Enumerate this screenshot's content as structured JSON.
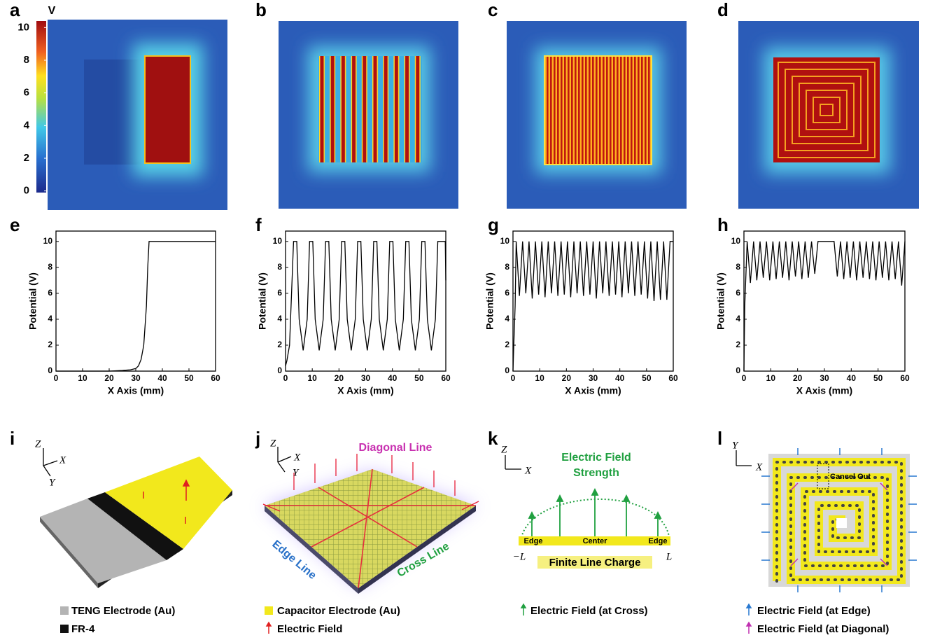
{
  "panel_labels": [
    "a",
    "b",
    "c",
    "d",
    "e",
    "f",
    "g",
    "h",
    "i",
    "j",
    "k",
    "l"
  ],
  "colorbar": {
    "unit": "V",
    "ticks": [
      0,
      2,
      4,
      6,
      8,
      10
    ],
    "lim": [
      -0.1,
      10.4
    ]
  },
  "chart_data": [
    {
      "type": "line",
      "xlabel": "X Axis (mm)",
      "ylabel": "Potential (V)",
      "color": "#000000",
      "xlim": [
        0,
        60
      ],
      "xticks": [
        0,
        10,
        20,
        30,
        40,
        50,
        60
      ],
      "ylim": [
        0,
        10.8
      ],
      "yticks": [
        0,
        2,
        4,
        6,
        8,
        10
      ],
      "x": [
        0,
        10,
        20,
        25,
        28,
        30,
        31,
        32,
        33,
        34,
        34.5,
        35,
        40,
        50,
        60
      ],
      "values": [
        0,
        0,
        0,
        0.05,
        0.1,
        0.2,
        0.4,
        0.9,
        2,
        5,
        8,
        10,
        10,
        10,
        10
      ]
    },
    {
      "type": "line",
      "xlabel": "X Axis (mm)",
      "ylabel": "Potential (V)",
      "color": "#000000",
      "xlim": [
        0,
        60
      ],
      "xticks": [
        0,
        10,
        20,
        30,
        40,
        50,
        60
      ],
      "ylim": [
        0,
        10.8
      ],
      "yticks": [
        0,
        2,
        4,
        6,
        8,
        10
      ],
      "x": [
        0,
        0.5,
        1.5,
        3.0,
        4.2,
        5.1,
        6.6,
        8.1,
        9.0,
        10.2,
        11.1,
        12.6,
        14.1,
        15.0,
        16.2,
        17.1,
        18.6,
        20.1,
        21.0,
        22.2,
        23.1,
        24.6,
        26.1,
        27.0,
        28.2,
        29.1,
        30.6,
        32.1,
        33.0,
        34.2,
        35.1,
        36.6,
        38.1,
        39.0,
        40.2,
        41.1,
        42.6,
        44.1,
        45.0,
        46.2,
        47.1,
        48.6,
        50.1,
        51.0,
        52.2,
        53.1,
        54.6,
        56.1,
        57.0,
        59.8,
        60
      ],
      "values": [
        0.4,
        0.8,
        2,
        10,
        10,
        4,
        1.6,
        4,
        10,
        10,
        4,
        1.6,
        4,
        10,
        10,
        4,
        1.6,
        4,
        10,
        10,
        4,
        1.6,
        4,
        10,
        10,
        4,
        1.6,
        4,
        10,
        10,
        4,
        1.6,
        4,
        10,
        10,
        4,
        1.6,
        4,
        10,
        10,
        4,
        1.6,
        4,
        10,
        10,
        4,
        1.6,
        4,
        10,
        10,
        7
      ]
    },
    {
      "type": "line",
      "xlabel": "X Axis (mm)",
      "ylabel": "Potential (V)",
      "color": "#000000",
      "xlim": [
        0,
        60
      ],
      "xticks": [
        0,
        10,
        20,
        30,
        40,
        50,
        60
      ],
      "ylim": [
        0,
        10.8
      ],
      "yticks": [
        0,
        2,
        4,
        6,
        8,
        10
      ],
      "x": [
        0,
        0.3,
        0.8,
        1.2,
        2.4,
        3.6,
        4.8,
        6.0,
        7.2,
        8.4,
        9.6,
        10.8,
        12.0,
        13.2,
        14.4,
        15.6,
        16.8,
        18.0,
        19.2,
        20.4,
        21.6,
        22.8,
        24.0,
        25.2,
        26.4,
        27.6,
        28.8,
        30.0,
        31.2,
        32.4,
        33.6,
        34.8,
        36.0,
        37.2,
        38.4,
        39.6,
        40.8,
        42.0,
        43.2,
        44.4,
        45.6,
        46.8,
        48.0,
        49.2,
        50.4,
        51.6,
        52.8,
        54.0,
        55.2,
        56.4,
        57.6,
        58.8,
        60
      ],
      "values": [
        0,
        2,
        5,
        10,
        5.8,
        10,
        6.0,
        10,
        5.6,
        10,
        5.9,
        10,
        5.7,
        10,
        6.0,
        10,
        5.8,
        10,
        5.9,
        10,
        5.7,
        10,
        6.0,
        10,
        5.8,
        10,
        5.9,
        10,
        5.6,
        10,
        6.0,
        10,
        5.8,
        10,
        5.9,
        10,
        5.7,
        10,
        6.0,
        10,
        5.8,
        10,
        5.9,
        10,
        5.6,
        10,
        5.4,
        10,
        5.5,
        10,
        5.5,
        10,
        10
      ]
    },
    {
      "type": "line",
      "xlabel": "X Axis (mm)",
      "ylabel": "Potential (V)",
      "color": "#000000",
      "xlim": [
        0,
        60
      ],
      "xticks": [
        0,
        10,
        20,
        30,
        40,
        50,
        60
      ],
      "ylim": [
        0,
        10.8
      ],
      "yticks": [
        0,
        2,
        4,
        6,
        8,
        10
      ],
      "x": [
        0,
        0.3,
        1.2,
        2.4,
        3.6,
        4.8,
        6.0,
        7.2,
        8.4,
        9.6,
        10.8,
        12.0,
        13.2,
        14.4,
        15.6,
        16.8,
        18.0,
        19.2,
        20.4,
        21.6,
        22.8,
        24.0,
        25.2,
        26.4,
        27.6,
        33.6,
        34.8,
        36.0,
        37.2,
        38.4,
        39.6,
        40.8,
        42.0,
        43.2,
        44.4,
        45.6,
        46.8,
        48.0,
        49.2,
        50.4,
        51.6,
        52.8,
        54.0,
        55.2,
        56.4,
        57.6,
        58.8,
        60
      ],
      "values": [
        0,
        5,
        10,
        6.8,
        10,
        7.0,
        10,
        7.2,
        10,
        7.0,
        10,
        7.1,
        10,
        7.2,
        10,
        7.0,
        10,
        7.3,
        10,
        7.1,
        10,
        7.2,
        10,
        7.5,
        10,
        10,
        7.3,
        10,
        7.1,
        10,
        7.2,
        10,
        7.0,
        10,
        7.2,
        10,
        7.1,
        10,
        7.0,
        10,
        7.2,
        10,
        7.0,
        10,
        7.1,
        10,
        6.6,
        10
      ]
    }
  ],
  "panel_i": {
    "axes": {
      "z": "Z",
      "x": "X",
      "y": "Y"
    },
    "legend": [
      "TENG Electrode (Au)",
      "FR-4"
    ]
  },
  "panel_j": {
    "axes": {
      "z": "Z",
      "x": "X",
      "y": "Y"
    },
    "labels": {
      "diagonal": "Diagonal Line",
      "edge": "Edge Line",
      "cross": "Cross Line"
    },
    "legend": [
      "Capacitor Electrode (Au)",
      "Electric Field"
    ]
  },
  "panel_k": {
    "axes": {
      "z": "Z",
      "x": "X"
    },
    "title": [
      "Electric Field",
      "Strength"
    ],
    "bar_labels": [
      "Edge",
      "Center",
      "Edge"
    ],
    "ends": [
      "−L",
      "L"
    ],
    "caption": "Finite Line Charge",
    "legend": [
      "Electric Field (at Cross)"
    ]
  },
  "panel_l": {
    "axes": {
      "y": "Y",
      "x": "X"
    },
    "note": "Cancel Out",
    "legend": [
      "Electric Field (at Edge)",
      "Electric Field (at Diagonal)"
    ]
  }
}
